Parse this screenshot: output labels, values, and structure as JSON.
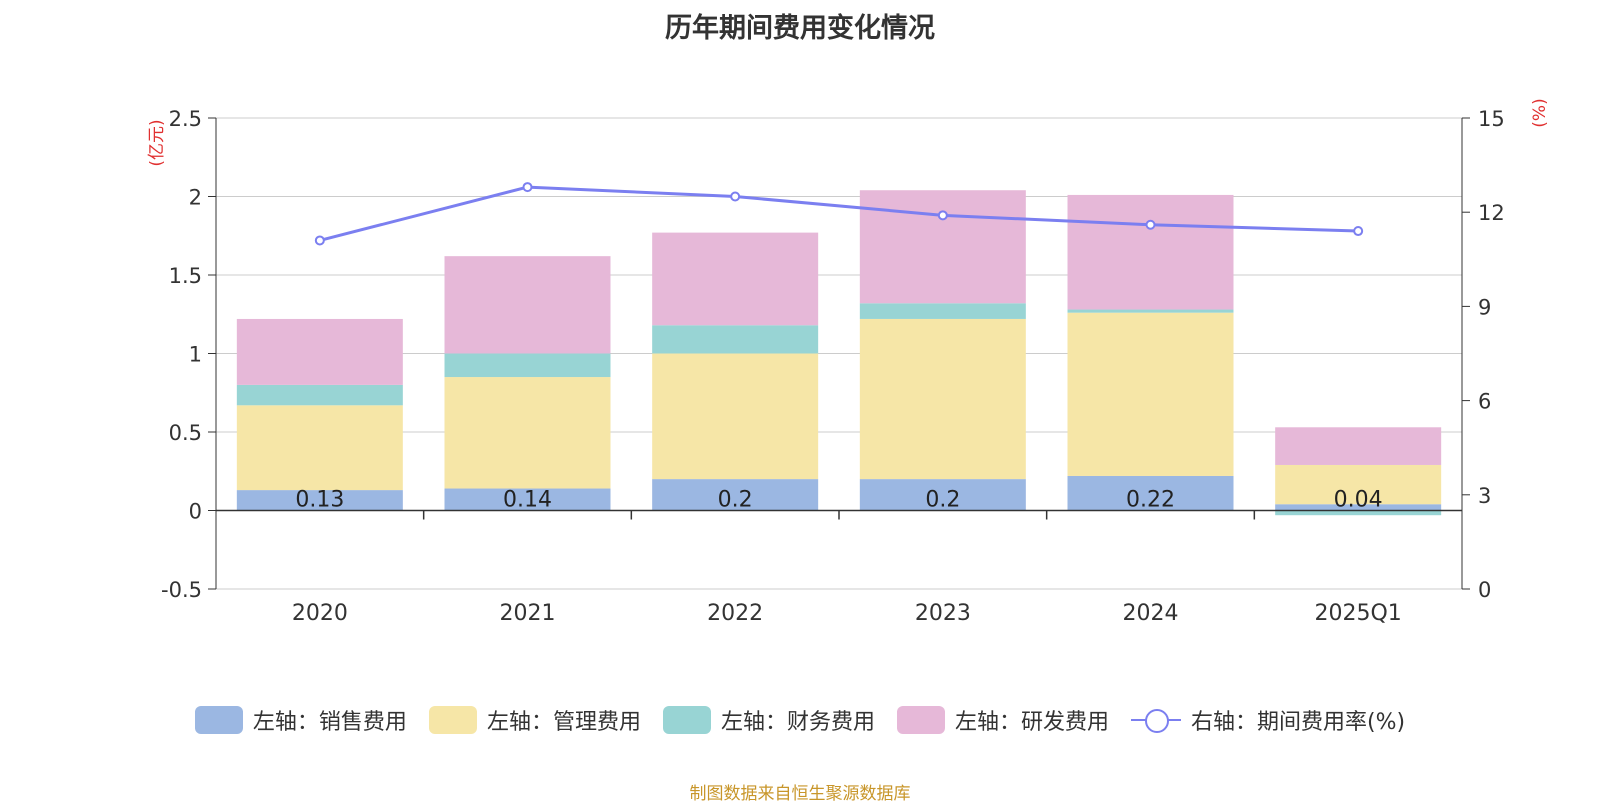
{
  "title": "历年期间费用变化情况",
  "source_note": "制图数据来自恒生聚源数据库",
  "colors": {
    "sales": "#9bb7e2",
    "admin": "#f6e6a7",
    "finance": "#98d4d4",
    "rd": "#e6b8d8",
    "rate": "#7b7ff0",
    "unit_label": "#e03030"
  },
  "chart_data": {
    "type": "bar",
    "stacked": true,
    "categories": [
      "2020",
      "2021",
      "2022",
      "2023",
      "2024",
      "2025Q1"
    ],
    "left_axis": {
      "unit": "(亿元)",
      "range": [
        -0.5,
        2.5
      ],
      "ticks": [
        "-0.5",
        "0",
        "0.5",
        "1",
        "1.5",
        "2",
        "2.5"
      ]
    },
    "right_axis": {
      "unit": "(%)",
      "range": [
        0,
        15
      ],
      "ticks": [
        "0",
        "3",
        "6",
        "9",
        "12",
        "15"
      ]
    },
    "series": [
      {
        "key": "sales",
        "name": "左轴：销售费用",
        "values": [
          0.13,
          0.14,
          0.2,
          0.2,
          0.22,
          0.04
        ],
        "labels": [
          "0.13",
          "0.14",
          "0.2",
          "0.2",
          "0.22",
          "0.04"
        ]
      },
      {
        "key": "admin",
        "name": "左轴：管理费用",
        "values": [
          0.54,
          0.71,
          0.8,
          1.02,
          1.04,
          0.25
        ]
      },
      {
        "key": "finance",
        "name": "左轴：财务费用",
        "values": [
          0.13,
          0.15,
          0.18,
          0.1,
          0.02,
          -0.03
        ]
      },
      {
        "key": "rd",
        "name": "左轴：研发费用",
        "values": [
          0.42,
          0.62,
          0.59,
          0.72,
          0.73,
          0.24
        ]
      }
    ],
    "line_series": {
      "key": "rate",
      "name": "右轴：期间费用率(%)",
      "axis": "right",
      "values": [
        11.1,
        12.8,
        12.5,
        11.9,
        11.6,
        11.4
      ]
    },
    "grid": true,
    "legend_position": "bottom"
  }
}
